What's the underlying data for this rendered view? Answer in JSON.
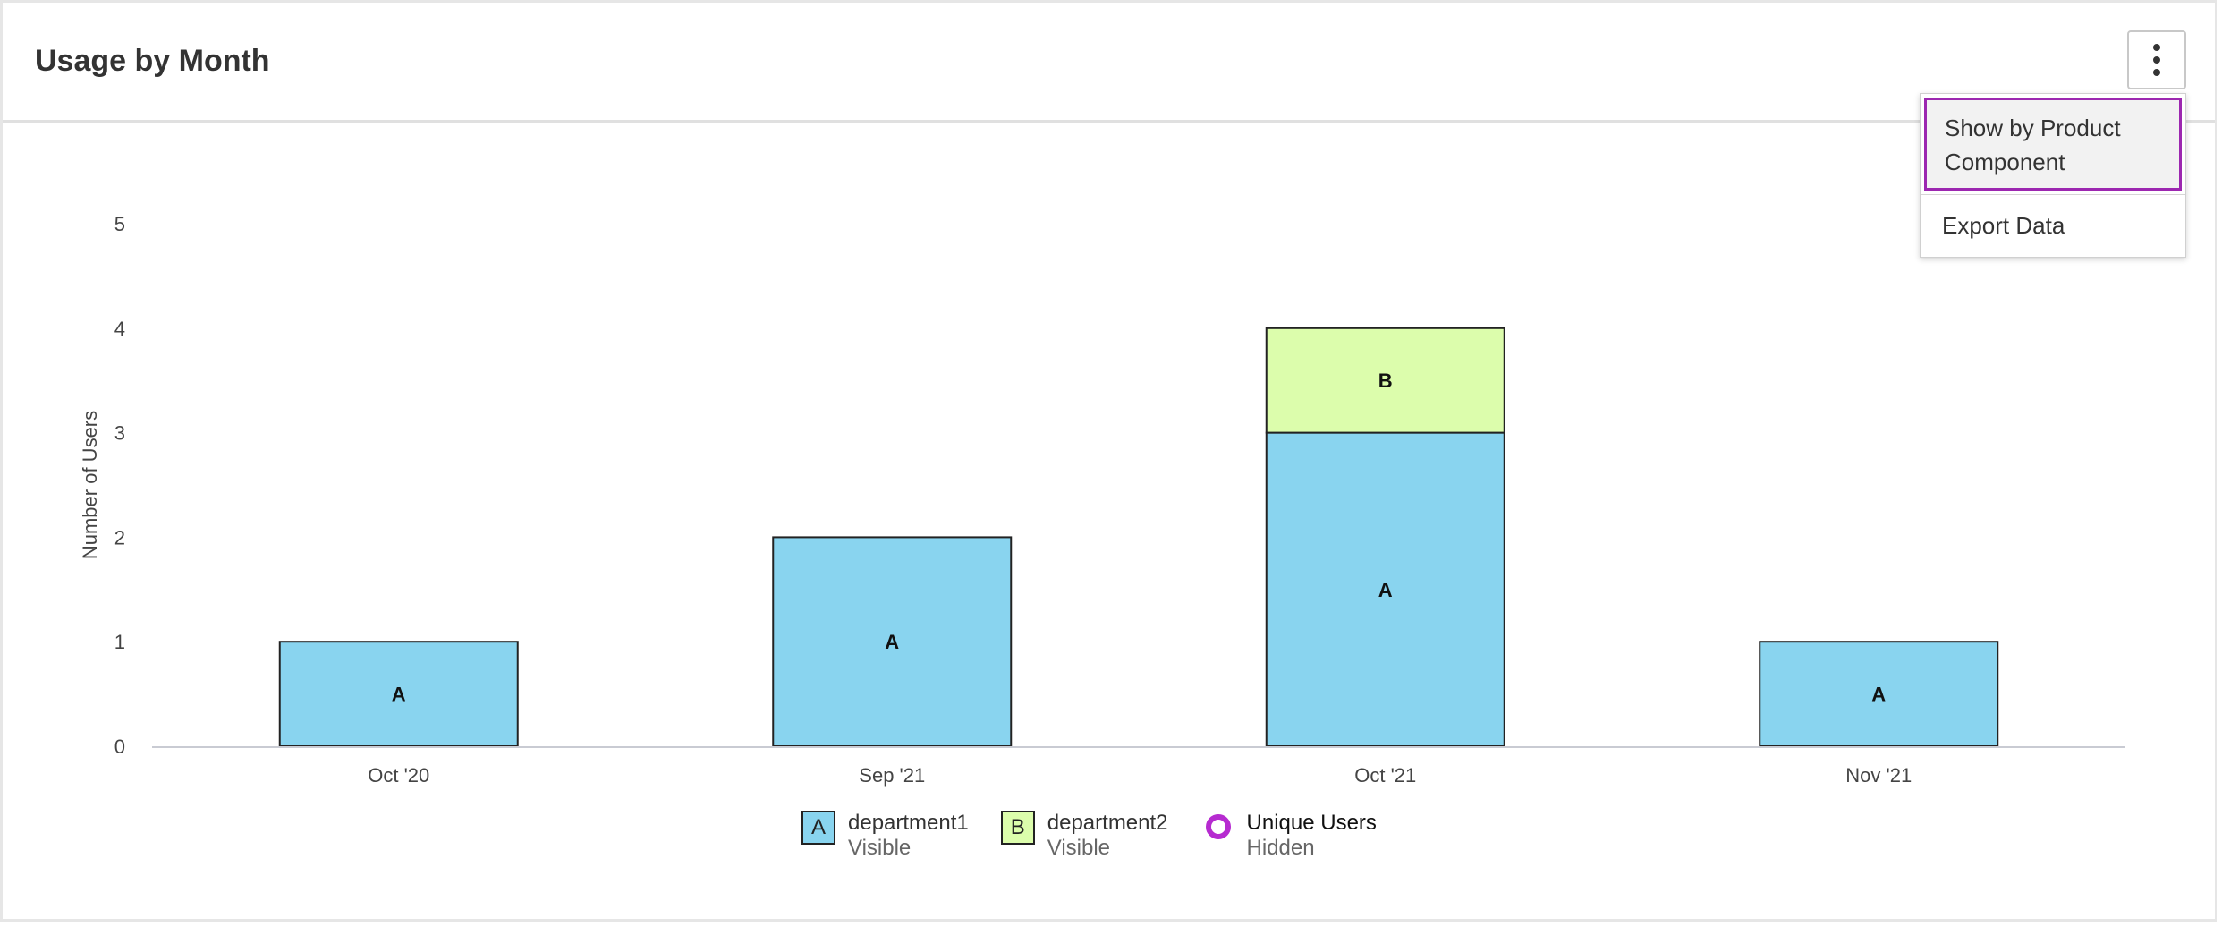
{
  "header": {
    "title": "Usage by Month"
  },
  "menu": {
    "items": [
      {
        "label": "Show by Product Component"
      },
      {
        "label": "Export Data"
      }
    ]
  },
  "chart_data": {
    "type": "bar",
    "stacked": true,
    "title": "",
    "xlabel": "",
    "ylabel": "Number of Users",
    "ylim": [
      0,
      5
    ],
    "yticks": [
      0,
      1,
      2,
      3,
      4,
      5
    ],
    "categories": [
      "Oct '20",
      "Sep '21",
      "Oct '21",
      "Nov '21"
    ],
    "series": [
      {
        "name": "department1",
        "short": "A",
        "color": "#89d4ef",
        "values": [
          1,
          2,
          3,
          1
        ]
      },
      {
        "name": "department2",
        "short": "B",
        "color": "#dcfdac",
        "values": [
          0,
          0,
          1,
          0
        ]
      }
    ],
    "legend": [
      {
        "name": "department1",
        "status": "Visible",
        "marker": "A",
        "color": "#89d4ef"
      },
      {
        "name": "department2",
        "status": "Visible",
        "marker": "B",
        "color": "#dcfdac"
      },
      {
        "name": "Unique Users",
        "status": "Hidden",
        "marker": "ring",
        "color": "#b62bd0"
      }
    ],
    "legend_position": "bottom",
    "grid": false
  }
}
